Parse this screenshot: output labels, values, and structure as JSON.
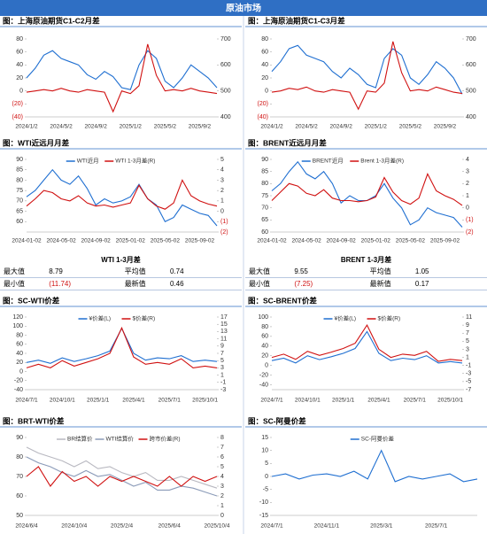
{
  "header": "原油市场",
  "chart_data": [
    {
      "type": "line",
      "title": "图：上海原油期货C1-C2月差",
      "categories": [
        "2024/1/2",
        null,
        null,
        null,
        "2024/5/2",
        null,
        null,
        null,
        "2024/9/2",
        null,
        null,
        null,
        "2025/1/2",
        null,
        null,
        null,
        "2025/5/2",
        null,
        null,
        null,
        "2025/9/2",
        null,
        null
      ],
      "series": [
        {
          "color": "#1f6fd1",
          "axis": "y",
          "values": [
            20,
            35,
            55,
            62,
            50,
            45,
            40,
            25,
            18,
            30,
            22,
            5,
            2,
            40,
            62,
            50,
            15,
            5,
            20,
            40,
            30,
            20,
            5
          ]
        },
        {
          "color": "#d01010",
          "axis": "y2",
          "values": [
            495,
            500,
            505,
            500,
            510,
            500,
            495,
            505,
            500,
            495,
            420,
            500,
            490,
            520,
            680,
            560,
            500,
            505,
            500,
            510,
            500,
            495,
            490
          ]
        }
      ],
      "ylim": [
        -40,
        80
      ],
      "yticks": [
        80,
        60,
        40,
        20,
        0,
        {
          "value": -20,
          "label": "(20)"
        },
        {
          "value": -40,
          "label": "(40)"
        }
      ],
      "y2lim": [
        400,
        700
      ],
      "y2ticks": [
        700,
        600,
        500,
        400
      ]
    },
    {
      "type": "line",
      "title": "图：上海原油期货C1-C3月差",
      "categories": [
        "2024/1/2",
        null,
        null,
        null,
        "2024/5/2",
        null,
        null,
        null,
        "2024/9/2",
        null,
        null,
        null,
        "2025/1/2",
        null,
        null,
        null,
        "2025/5/2",
        null,
        null,
        null,
        "2025/9/2",
        null,
        null
      ],
      "series": [
        {
          "color": "#1f6fd1",
          "axis": "y",
          "values": [
            30,
            45,
            65,
            70,
            55,
            50,
            45,
            30,
            20,
            35,
            25,
            10,
            5,
            50,
            65,
            55,
            20,
            10,
            25,
            45,
            35,
            20,
            -5
          ]
        },
        {
          "color": "#d01010",
          "axis": "y2",
          "values": [
            495,
            500,
            510,
            505,
            515,
            500,
            495,
            505,
            500,
            495,
            430,
            500,
            495,
            530,
            690,
            570,
            500,
            505,
            500,
            515,
            505,
            495,
            490
          ]
        }
      ],
      "ylim": [
        -40,
        80
      ],
      "yticks": [
        80,
        60,
        40,
        20,
        0,
        {
          "value": -20,
          "label": "(20)"
        },
        {
          "value": -40,
          "label": "(40)"
        }
      ],
      "y2lim": [
        400,
        700
      ],
      "y2ticks": [
        700,
        600,
        500,
        400
      ]
    },
    {
      "type": "line",
      "title": "图：WTI近远月月差",
      "categories": [
        "2024-01-02",
        null,
        null,
        null,
        "2024-05-02",
        null,
        null,
        null,
        "2024-09-02",
        null,
        null,
        null,
        "2025-01-02",
        null,
        null,
        null,
        "2025-05-02",
        null,
        null,
        null,
        "2025-09-02",
        null,
        null
      ],
      "series": [
        {
          "name": "WTI近月",
          "color": "#1f6fd1",
          "axis": "y",
          "values": [
            72,
            75,
            80,
            85,
            80,
            78,
            82,
            76,
            68,
            71,
            69,
            70,
            72,
            78,
            71,
            68,
            60,
            62,
            68,
            66,
            64,
            63,
            58
          ]
        },
        {
          "name": "WTI 1-3月差(R)",
          "color": "#d01010",
          "axis": "y2",
          "values": [
            0.5,
            1.2,
            2,
            1.8,
            1.2,
            1,
            1.5,
            0.8,
            0.5,
            0.6,
            0.4,
            0.6,
            0.8,
            2.5,
            1.2,
            0.5,
            0.2,
            0.8,
            3,
            1.5,
            1,
            0.7,
            0.5
          ]
        }
      ],
      "ylim": [
        55,
        90
      ],
      "yticks": [
        90,
        85,
        80,
        75,
        70,
        65,
        60
      ],
      "y2lim": [
        -2,
        5
      ],
      "y2ticks": [
        5,
        4,
        3,
        2,
        1,
        0,
        {
          "value": -1,
          "label": "(1)"
        },
        {
          "value": -2,
          "label": "(2)"
        }
      ]
    },
    {
      "type": "line",
      "title": "图：BRENT近远月月差",
      "categories": [
        "2024-01-02",
        null,
        null,
        null,
        "2024-05-02",
        null,
        null,
        null,
        "2024-09-02",
        null,
        null,
        null,
        "2025-01-02",
        null,
        null,
        null,
        "2025-05-02",
        null,
        null,
        null,
        "2025-09-02",
        null,
        null
      ],
      "series": [
        {
          "name": "BRENT近月",
          "color": "#1f6fd1",
          "axis": "y",
          "values": [
            77,
            80,
            85,
            89,
            84,
            82,
            85,
            80,
            72,
            75,
            73,
            73,
            75,
            80,
            74,
            70,
            63,
            65,
            70,
            68,
            67,
            66,
            62
          ]
        },
        {
          "name": "Brent 1-3月差(R)",
          "color": "#d01010",
          "axis": "y2",
          "values": [
            0.6,
            1.3,
            2,
            1.8,
            1.2,
            1,
            1.5,
            0.8,
            0.6,
            0.6,
            0.5,
            0.6,
            0.9,
            2.5,
            1.3,
            0.6,
            0.3,
            0.8,
            2.8,
            1.4,
            1,
            0.7,
            0.2
          ]
        }
      ],
      "ylim": [
        60,
        90
      ],
      "yticks": [
        90,
        85,
        80,
        75,
        70,
        65,
        60
      ],
      "y2lim": [
        -2,
        4
      ],
      "y2ticks": [
        4,
        3,
        2,
        1,
        0,
        {
          "value": -1,
          "label": "(1)"
        },
        {
          "value": -2,
          "label": "(2)"
        }
      ]
    },
    {
      "type": "line",
      "title": "图：SC-WTI价差",
      "categories": [
        "2024/7/1",
        null,
        null,
        "2024/10/1",
        null,
        null,
        "2025/1/1",
        null,
        null,
        "2025/4/1",
        null,
        null,
        "2025/7/1",
        null,
        null,
        "2025/10/1",
        null
      ],
      "series": [
        {
          "name": "¥价差(L)",
          "color": "#1f6fd1",
          "axis": "y",
          "values": [
            20,
            25,
            18,
            30,
            22,
            28,
            35,
            45,
            95,
            40,
            25,
            30,
            28,
            35,
            22,
            25,
            22
          ]
        },
        {
          "name": "$价差(R)",
          "color": "#d01010",
          "axis": "y2",
          "values": [
            3,
            4,
            3,
            5,
            3.5,
            4.5,
            5.5,
            7,
            14,
            6,
            4,
            4.5,
            4,
            5.5,
            3,
            3.5,
            3
          ]
        }
      ],
      "ylim": [
        -40,
        120
      ],
      "yticks": [
        120,
        100,
        80,
        60,
        40,
        20,
        0,
        -20,
        -40
      ],
      "y2lim": [
        -3,
        17
      ],
      "y2ticks": [
        17,
        15,
        13,
        11,
        9,
        7,
        5,
        3,
        1,
        -1,
        -3
      ]
    },
    {
      "type": "line",
      "title": "图：SC-BRENT价差",
      "categories": [
        "2024/7/1",
        null,
        null,
        "2024/10/1",
        null,
        null,
        "2025/1/1",
        null,
        null,
        "2025/4/1",
        null,
        null,
        "2025/7/1",
        null,
        null,
        "2025/10/1",
        null
      ],
      "series": [
        {
          "name": "¥价差(L)",
          "color": "#1f6fd1",
          "axis": "y",
          "values": [
            10,
            15,
            5,
            20,
            12,
            18,
            25,
            35,
            70,
            25,
            10,
            15,
            12,
            20,
            5,
            8,
            5
          ]
        },
        {
          "name": "$价差(R)",
          "color": "#d01010",
          "axis": "y2",
          "values": [
            1,
            1.8,
            0.5,
            2.5,
            1.5,
            2.3,
            3.2,
            4.5,
            9,
            3,
            1,
            1.8,
            1.5,
            2.5,
            0,
            0.5,
            0.2
          ]
        }
      ],
      "ylim": [
        -50,
        100
      ],
      "yticks": [
        100,
        80,
        60,
        40,
        20,
        0,
        -20,
        -40
      ],
      "y2lim": [
        -7,
        11
      ],
      "y2ticks": [
        11,
        9,
        7,
        5,
        3,
        1,
        -1,
        -3,
        -5,
        -7
      ]
    },
    {
      "type": "line",
      "title": "图：BRT-WTI价差",
      "categories": [
        "2024/6/4",
        null,
        null,
        null,
        "2024/10/4",
        null,
        null,
        null,
        "2025/2/4",
        null,
        null,
        null,
        "2025/6/4",
        null,
        null,
        null,
        "2025/10/4"
      ],
      "series": [
        {
          "name": "BR结算价",
          "color": "#b8b8c0",
          "axis": "y",
          "values": [
            85,
            82,
            80,
            78,
            75,
            78,
            74,
            75,
            72,
            70,
            72,
            68,
            68,
            70,
            68,
            66,
            64
          ]
        },
        {
          "name": "WTI结算价",
          "color": "#8a9ab8",
          "axis": "y",
          "values": [
            80,
            77,
            75,
            72,
            70,
            73,
            70,
            71,
            68,
            65,
            67,
            63,
            63,
            65,
            64,
            62,
            60
          ]
        },
        {
          "name": "跨市价差(R)",
          "color": "#d01010",
          "axis": "y2",
          "values": [
            4,
            5,
            3,
            4.5,
            3.5,
            4,
            3,
            4,
            3.5,
            4,
            3.5,
            3,
            4,
            3,
            4,
            3.5,
            4
          ]
        }
      ],
      "ylim": [
        50,
        90
      ],
      "yticks": [
        90,
        80,
        70,
        60,
        50
      ],
      "y2lim": [
        0,
        8
      ],
      "y2ticks": [
        8,
        7,
        6,
        5,
        4,
        3,
        2,
        1,
        0
      ]
    },
    {
      "type": "line",
      "title": "图：SC-阿曼价差",
      "categories": [
        "2024/7/1",
        null,
        null,
        null,
        "2024/11/1",
        null,
        null,
        null,
        "2025/3/1",
        null,
        null,
        null,
        "2025/7/1",
        null,
        null,
        null
      ],
      "series": [
        {
          "name": "SC-阿曼价差",
          "color": "#1f6fd1",
          "axis": "y",
          "values": [
            0,
            1,
            -1,
            0.5,
            1,
            0,
            2,
            -1,
            10,
            -2,
            0,
            -1,
            0,
            1,
            -2,
            -1
          ]
        }
      ],
      "ylim": [
        -15,
        15
      ],
      "yticks": [
        15,
        10,
        5,
        0,
        -5,
        -10,
        -15
      ]
    }
  ],
  "tables": [
    {
      "title": "WTI 1-3月差",
      "rows": [
        [
          "最大值",
          8.79,
          "平均值",
          0.74
        ],
        [
          "最小值",
          "(11.74)",
          "最新值",
          0.46
        ]
      ]
    },
    {
      "title": "BRENT 1-3月差",
      "rows": [
        [
          "最大值",
          9.55,
          "平均值",
          1.05
        ],
        [
          "最小值",
          "(7.25)",
          "最新值",
          0.17
        ]
      ]
    }
  ]
}
